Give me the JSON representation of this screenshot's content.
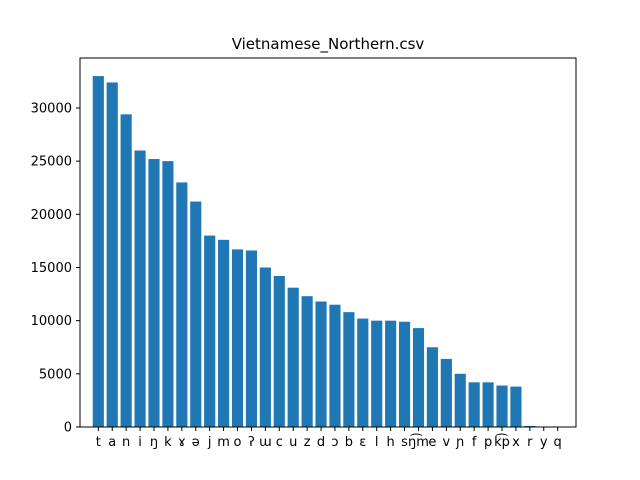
{
  "chart_data": {
    "type": "bar",
    "title": "Vietnamese_Northern.csv",
    "xlabel": "",
    "ylabel": "",
    "categories": [
      "t",
      "a",
      "n",
      "i",
      "ŋ",
      "k",
      "ɤ",
      "ə",
      "j",
      "m",
      "o",
      "ʔ",
      "ɯ",
      "c",
      "u",
      "z",
      "d",
      "ɔ",
      "b",
      "ɛ",
      "l",
      "h",
      "s",
      "ŋ͡m",
      "e",
      "v",
      "ɲ",
      "f",
      "p",
      "k͡p",
      "x",
      "r",
      "y",
      "q"
    ],
    "values": [
      33000,
      32400,
      29400,
      26000,
      25200,
      25000,
      23000,
      21200,
      18000,
      17600,
      16700,
      16600,
      15000,
      14200,
      13100,
      12300,
      11800,
      11500,
      10800,
      10200,
      10000,
      10000,
      9900,
      9300,
      7500,
      6400,
      5000,
      4200,
      4200,
      3900,
      3800,
      100,
      30,
      20
    ],
    "ylim": [
      0,
      34700
    ],
    "yticks": [
      0,
      5000,
      10000,
      15000,
      20000,
      25000,
      30000
    ],
    "bar_color": "#1f77b4",
    "grid": false,
    "legend": "none"
  }
}
